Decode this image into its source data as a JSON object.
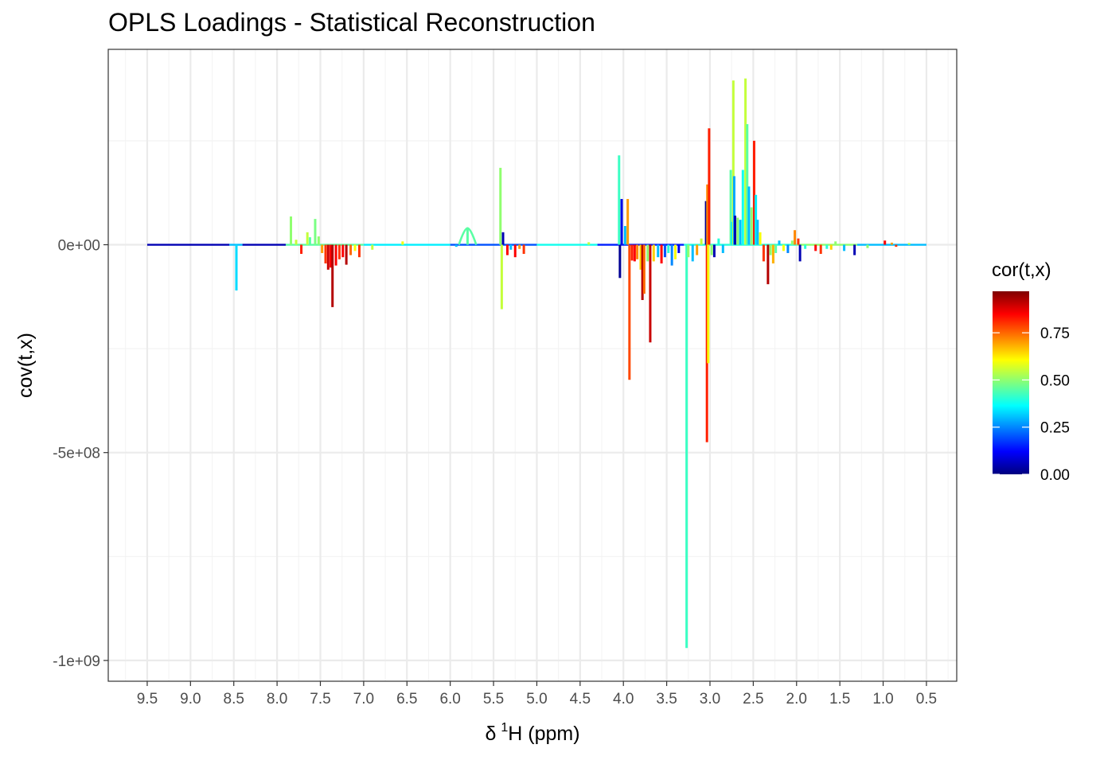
{
  "chart_data": {
    "type": "line",
    "title": "OPLS Loadings - Statistical Reconstruction",
    "xlabel": {
      "prefix": "δ",
      "superscript": "1",
      "suffix": "H (ppm)"
    },
    "ylabel": "cov(t,x)",
    "x_reversed": true,
    "xlim": [
      9.95,
      0.15
    ],
    "ylim": [
      -1050000000.0,
      470000000.0
    ],
    "x_ticks": [
      9.5,
      9.0,
      8.5,
      8.0,
      7.5,
      7.0,
      6.5,
      6.0,
      5.5,
      5.0,
      4.5,
      4.0,
      3.5,
      3.0,
      2.5,
      2.0,
      1.5,
      1.0,
      0.5
    ],
    "x_tick_labels": [
      "9.5",
      "9.0",
      "8.5",
      "8.0",
      "7.5",
      "7.0",
      "6.5",
      "6.0",
      "5.5",
      "5.0",
      "4.5",
      "4.0",
      "3.5",
      "3.0",
      "2.5",
      "2.0",
      "1.5",
      "1.0",
      "0.5"
    ],
    "y_ticks": [
      0,
      -500000000,
      -1000000000
    ],
    "y_tick_labels": [
      "0e+00",
      "-5e+08",
      "-1e+09"
    ],
    "grid": true,
    "legend": {
      "title": "cor(t,x)",
      "position": "right",
      "range": [
        0,
        0.97
      ],
      "breaks": [
        0.0,
        0.25,
        0.5,
        0.75
      ],
      "labels": [
        "0.00",
        "0.25",
        "0.50",
        "0.75"
      ],
      "colormap": [
        "#00007F",
        "#0000FF",
        "#007FFF",
        "#00FFFF",
        "#7FFF7F",
        "#FFFF00",
        "#FF7F00",
        "#FF0000",
        "#7F0000"
      ]
    },
    "baseline_x_range": [
      9.5,
      0.5
    ],
    "baseline_segments": [
      {
        "x0": 9.5,
        "x1": 8.55,
        "cor": 0.05
      },
      {
        "x0": 8.55,
        "x1": 8.4,
        "cor": 0.3
      },
      {
        "x0": 8.4,
        "x1": 7.9,
        "cor": 0.05
      },
      {
        "x0": 7.9,
        "x1": 7.0,
        "cor": 0.45
      },
      {
        "x0": 7.0,
        "x1": 6.0,
        "cor": 0.35
      },
      {
        "x0": 6.0,
        "x1": 5.0,
        "cor": 0.2
      },
      {
        "x0": 5.0,
        "x1": 4.3,
        "cor": 0.38
      },
      {
        "x0": 4.3,
        "x1": 3.3,
        "cor": 0.15
      },
      {
        "x0": 3.3,
        "x1": 2.0,
        "cor": 0.4
      },
      {
        "x0": 2.0,
        "x1": 1.3,
        "cor": 0.5
      },
      {
        "x0": 1.3,
        "x1": 0.5,
        "cor": 0.3
      }
    ],
    "peaks": [
      {
        "x": 8.47,
        "y": -110000000,
        "cor": 0.33
      },
      {
        "x": 7.84,
        "y": 68000000,
        "cor": 0.5
      },
      {
        "x": 7.78,
        "y": 12000000,
        "cor": 0.55
      },
      {
        "x": 7.72,
        "y": -22000000,
        "cor": 0.82
      },
      {
        "x": 7.65,
        "y": 30000000,
        "cor": 0.55
      },
      {
        "x": 7.62,
        "y": 18000000,
        "cor": 0.45
      },
      {
        "x": 7.56,
        "y": 62000000,
        "cor": 0.48
      },
      {
        "x": 7.52,
        "y": 20000000,
        "cor": 0.5
      },
      {
        "x": 7.48,
        "y": -20000000,
        "cor": 0.7
      },
      {
        "x": 7.44,
        "y": -45000000,
        "cor": 0.8
      },
      {
        "x": 7.41,
        "y": -60000000,
        "cor": 0.9
      },
      {
        "x": 7.38,
        "y": -55000000,
        "cor": 0.85
      },
      {
        "x": 7.36,
        "y": -150000000,
        "cor": 0.92
      },
      {
        "x": 7.32,
        "y": -50000000,
        "cor": 0.85
      },
      {
        "x": 7.28,
        "y": -35000000,
        "cor": 0.8
      },
      {
        "x": 7.24,
        "y": -30000000,
        "cor": 0.85
      },
      {
        "x": 7.2,
        "y": -48000000,
        "cor": 0.92
      },
      {
        "x": 7.15,
        "y": -25000000,
        "cor": 0.75
      },
      {
        "x": 7.1,
        "y": -15000000,
        "cor": 0.6
      },
      {
        "x": 7.05,
        "y": -30000000,
        "cor": 0.8
      },
      {
        "x": 6.9,
        "y": -12000000,
        "cor": 0.55
      },
      {
        "x": 6.55,
        "y": 8000000,
        "cor": 0.6
      },
      {
        "x": 5.93,
        "y": -5000000,
        "cor": 0.3
      },
      {
        "x": 5.8,
        "y": 40000000,
        "cor": 0.45
      },
      {
        "x": 5.42,
        "y": 185000000,
        "cor": 0.5
      },
      {
        "x": 5.405,
        "y": -155000000,
        "cor": 0.55
      },
      {
        "x": 5.39,
        "y": 30000000,
        "cor": 0.05
      },
      {
        "x": 5.34,
        "y": -25000000,
        "cor": 0.85
      },
      {
        "x": 5.3,
        "y": -12000000,
        "cor": 0.3
      },
      {
        "x": 5.25,
        "y": -30000000,
        "cor": 0.85
      },
      {
        "x": 5.2,
        "y": -10000000,
        "cor": 0.7
      },
      {
        "x": 5.15,
        "y": -22000000,
        "cor": 0.8
      },
      {
        "x": 4.4,
        "y": 6000000,
        "cor": 0.55
      },
      {
        "x": 4.05,
        "y": 215000000,
        "cor": 0.42
      },
      {
        "x": 4.04,
        "y": -80000000,
        "cor": 0.02
      },
      {
        "x": 4.02,
        "y": 110000000,
        "cor": 0.1
      },
      {
        "x": 3.98,
        "y": 45000000,
        "cor": 0.3
      },
      {
        "x": 3.95,
        "y": 110000000,
        "cor": 0.7
      },
      {
        "x": 3.93,
        "y": -325000000,
        "cor": 0.78
      },
      {
        "x": 3.9,
        "y": -38000000,
        "cor": 0.82
      },
      {
        "x": 3.87,
        "y": -40000000,
        "cor": 0.85
      },
      {
        "x": 3.84,
        "y": -35000000,
        "cor": 0.72
      },
      {
        "x": 3.8,
        "y": -60000000,
        "cor": 0.65
      },
      {
        "x": 3.78,
        "y": -133000000,
        "cor": 0.92
      },
      {
        "x": 3.76,
        "y": -118000000,
        "cor": 0.75
      },
      {
        "x": 3.72,
        "y": -40000000,
        "cor": 0.5
      },
      {
        "x": 3.69,
        "y": -235000000,
        "cor": 0.9
      },
      {
        "x": 3.65,
        "y": -40000000,
        "cor": 0.65
      },
      {
        "x": 3.6,
        "y": -30000000,
        "cor": 0.3
      },
      {
        "x": 3.56,
        "y": -45000000,
        "cor": 0.85
      },
      {
        "x": 3.52,
        "y": -30000000,
        "cor": 0.2
      },
      {
        "x": 3.48,
        "y": -20000000,
        "cor": 0.4
      },
      {
        "x": 3.44,
        "y": -50000000,
        "cor": 0.25
      },
      {
        "x": 3.4,
        "y": -35000000,
        "cor": 0.6
      },
      {
        "x": 3.36,
        "y": -20000000,
        "cor": 0.1
      },
      {
        "x": 3.27,
        "y": -970000000,
        "cor": 0.42
      },
      {
        "x": 3.25,
        "y": -30000000,
        "cor": 0.5
      },
      {
        "x": 3.2,
        "y": -40000000,
        "cor": 0.3
      },
      {
        "x": 3.15,
        "y": -25000000,
        "cor": 0.7
      },
      {
        "x": 3.1,
        "y": 15000000,
        "cor": 0.55
      },
      {
        "x": 3.045,
        "y": 105000000,
        "cor": 0.02
      },
      {
        "x": 3.035,
        "y": -475000000,
        "cor": 0.82
      },
      {
        "x": 3.03,
        "y": 145000000,
        "cor": 0.72
      },
      {
        "x": 3.02,
        "y": -285000000,
        "cor": 0.6
      },
      {
        "x": 3.01,
        "y": 280000000,
        "cor": 0.82
      },
      {
        "x": 2.98,
        "y": -25000000,
        "cor": 0.5
      },
      {
        "x": 2.95,
        "y": -30000000,
        "cor": 0.05
      },
      {
        "x": 2.9,
        "y": 15000000,
        "cor": 0.4
      },
      {
        "x": 2.85,
        "y": -20000000,
        "cor": 0.3
      },
      {
        "x": 2.76,
        "y": 180000000,
        "cor": 0.45
      },
      {
        "x": 2.745,
        "y": 55000000,
        "cor": 0.35
      },
      {
        "x": 2.73,
        "y": 395000000,
        "cor": 0.55
      },
      {
        "x": 2.72,
        "y": 165000000,
        "cor": 0.28
      },
      {
        "x": 2.71,
        "y": 70000000,
        "cor": 0.05
      },
      {
        "x": 2.68,
        "y": 65000000,
        "cor": 0.5
      },
      {
        "x": 2.65,
        "y": 60000000,
        "cor": 0.3
      },
      {
        "x": 2.62,
        "y": 180000000,
        "cor": 0.38
      },
      {
        "x": 2.59,
        "y": 400000000,
        "cor": 0.55
      },
      {
        "x": 2.57,
        "y": 290000000,
        "cor": 0.45
      },
      {
        "x": 2.55,
        "y": 140000000,
        "cor": 0.3
      },
      {
        "x": 2.52,
        "y": 90000000,
        "cor": 0.5
      },
      {
        "x": 2.49,
        "y": 250000000,
        "cor": 0.82
      },
      {
        "x": 2.47,
        "y": 120000000,
        "cor": 0.35
      },
      {
        "x": 2.45,
        "y": 60000000,
        "cor": 0.3
      },
      {
        "x": 2.42,
        "y": 30000000,
        "cor": 0.6
      },
      {
        "x": 2.38,
        "y": -40000000,
        "cor": 0.8
      },
      {
        "x": 2.33,
        "y": -95000000,
        "cor": 0.92
      },
      {
        "x": 2.3,
        "y": -25000000,
        "cor": 0.5
      },
      {
        "x": 2.27,
        "y": -45000000,
        "cor": 0.68
      },
      {
        "x": 2.24,
        "y": -20000000,
        "cor": 0.45
      },
      {
        "x": 2.2,
        "y": 10000000,
        "cor": 0.3
      },
      {
        "x": 2.15,
        "y": -15000000,
        "cor": 0.6
      },
      {
        "x": 2.1,
        "y": -20000000,
        "cor": 0.25
      },
      {
        "x": 2.05,
        "y": 10000000,
        "cor": 0.5
      },
      {
        "x": 2.02,
        "y": 35000000,
        "cor": 0.72
      },
      {
        "x": 1.98,
        "y": 15000000,
        "cor": 0.8
      },
      {
        "x": 1.96,
        "y": -40000000,
        "cor": 0.05
      },
      {
        "x": 1.9,
        "y": -10000000,
        "cor": 0.4
      },
      {
        "x": 1.78,
        "y": -15000000,
        "cor": 0.85
      },
      {
        "x": 1.72,
        "y": -22000000,
        "cor": 0.8
      },
      {
        "x": 1.65,
        "y": -10000000,
        "cor": 0.4
      },
      {
        "x": 1.6,
        "y": -12000000,
        "cor": 0.65
      },
      {
        "x": 1.55,
        "y": 8000000,
        "cor": 0.5
      },
      {
        "x": 1.45,
        "y": -15000000,
        "cor": 0.3
      },
      {
        "x": 1.33,
        "y": -25000000,
        "cor": 0.05
      },
      {
        "x": 1.18,
        "y": -8000000,
        "cor": 0.5
      },
      {
        "x": 0.98,
        "y": 10000000,
        "cor": 0.85
      },
      {
        "x": 0.9,
        "y": 5000000,
        "cor": 0.7
      },
      {
        "x": 0.85,
        "y": -5000000,
        "cor": 0.8
      },
      {
        "x": 0.7,
        "y": 4000000,
        "cor": 0.55
      }
    ],
    "broad_bumps": [
      {
        "x0": 5.9,
        "x1": 5.7,
        "y": 40000000,
        "cor": 0.45
      }
    ]
  }
}
